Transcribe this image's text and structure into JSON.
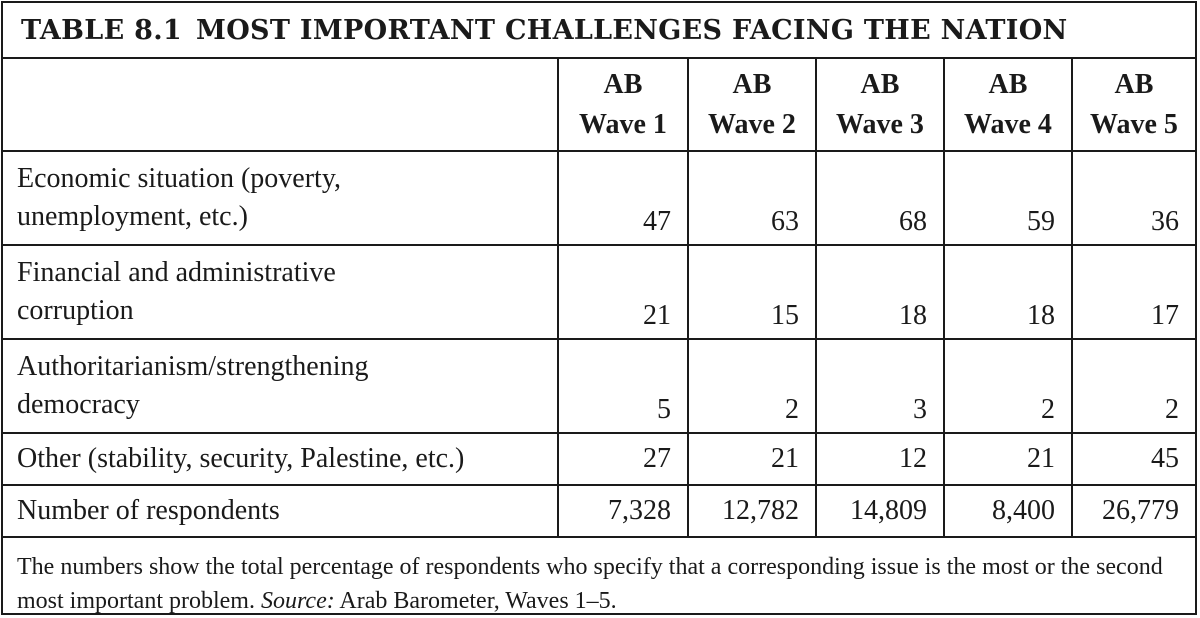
{
  "title": {
    "number": "TABLE 8.1",
    "text": "MOST IMPORTANT CHALLENGES FACING THE NATION"
  },
  "columns": [
    {
      "top": "AB",
      "bottom": "Wave 1"
    },
    {
      "top": "AB",
      "bottom": "Wave 2"
    },
    {
      "top": "AB",
      "bottom": "Wave 3"
    },
    {
      "top": "AB",
      "bottom": "Wave 4"
    },
    {
      "top": "AB",
      "bottom": "Wave 5"
    }
  ],
  "rows": [
    {
      "line1": "Economic situation (poverty,",
      "line2": "unemployment, etc.)",
      "values": [
        "47",
        "63",
        "68",
        "59",
        "36"
      ]
    },
    {
      "line1": "Financial and administrative",
      "line2": "corruption",
      "values": [
        "21",
        "15",
        "18",
        "18",
        "17"
      ]
    },
    {
      "line1": "Authoritarianism/strengthening",
      "line2": "democracy",
      "values": [
        "5",
        "2",
        "3",
        "2",
        "2"
      ]
    },
    {
      "line1": "Other (stability, security, Palestine, etc.)",
      "line2": "",
      "values": [
        "27",
        "21",
        "12",
        "21",
        "45"
      ]
    },
    {
      "line1": "Number of respondents",
      "line2": "",
      "values": [
        "7,328",
        "12,782",
        "14,809",
        "8,400",
        "26,779"
      ]
    }
  ],
  "note": {
    "text": "The numbers show the total percentage of respondents who specify that a corresponding issue is the most or the second most important problem.",
    "source_label": "Source:",
    "source_text": "Arab Barometer, Waves 1–5."
  }
}
